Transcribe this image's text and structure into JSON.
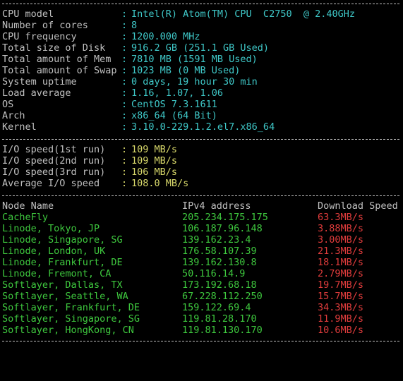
{
  "colors": {
    "background": "#000000",
    "label": "#c0c0c0",
    "sysinfo_value": "#3fc8c8",
    "io_value": "#d8d86a",
    "node_and_ip": "#3ec83e",
    "speed": "#e03c3c"
  },
  "separator": "-",
  "system_info": [
    {
      "label": "CPU model",
      "value": "Intel(R) Atom(TM) CPU  C2750  @ 2.40GHz"
    },
    {
      "label": "Number of cores",
      "value": "8"
    },
    {
      "label": "CPU frequency",
      "value": "1200.000 MHz"
    },
    {
      "label": "Total size of Disk",
      "value": "916.2 GB (251.1 GB Used)"
    },
    {
      "label": "Total amount of Mem",
      "value": "7810 MB (1591 MB Used)"
    },
    {
      "label": "Total amount of Swap",
      "value": "1023 MB (0 MB Used)"
    },
    {
      "label": "System uptime",
      "value": "0 days, 19 hour 30 min"
    },
    {
      "label": "Load average",
      "value": "1.16, 1.07, 1.06"
    },
    {
      "label": "OS",
      "value": "CentOS 7.3.1611"
    },
    {
      "label": "Arch",
      "value": "x86_64 (64 Bit)"
    },
    {
      "label": "Kernel",
      "value": "3.10.0-229.1.2.el7.x86_64"
    }
  ],
  "io_speed": [
    {
      "label": "I/O speed(1st run)",
      "value": "109 MB/s"
    },
    {
      "label": "I/O speed(2nd run)",
      "value": "109 MB/s"
    },
    {
      "label": "I/O speed(3rd run)",
      "value": "106 MB/s"
    },
    {
      "label": "Average I/O speed",
      "value": "108.0 MB/s"
    }
  ],
  "speed_table": {
    "headers": {
      "node": "Node Name",
      "ip": "IPv4 address",
      "speed": "Download Speed"
    },
    "rows": [
      {
        "node": "CacheFly",
        "ip": "205.234.175.175",
        "speed": "63.3MB/s"
      },
      {
        "node": "Linode, Tokyo, JP",
        "ip": "106.187.96.148",
        "speed": "3.88MB/s"
      },
      {
        "node": "Linode, Singapore, SG",
        "ip": "139.162.23.4",
        "speed": "3.00MB/s"
      },
      {
        "node": "Linode, London, UK",
        "ip": "176.58.107.39",
        "speed": "21.3MB/s"
      },
      {
        "node": "Linode, Frankfurt, DE",
        "ip": "139.162.130.8",
        "speed": "18.1MB/s"
      },
      {
        "node": "Linode, Fremont, CA",
        "ip": "50.116.14.9",
        "speed": "2.79MB/s"
      },
      {
        "node": "Softlayer, Dallas, TX",
        "ip": "173.192.68.18",
        "speed": "19.7MB/s"
      },
      {
        "node": "Softlayer, Seattle, WA",
        "ip": "67.228.112.250",
        "speed": "15.7MB/s"
      },
      {
        "node": "Softlayer, Frankfurt, DE",
        "ip": "159.122.69.4",
        "speed": "34.3MB/s"
      },
      {
        "node": "Softlayer, Singapore, SG",
        "ip": "119.81.28.170",
        "speed": "11.9MB/s"
      },
      {
        "node": "Softlayer, HongKong, CN",
        "ip": "119.81.130.170",
        "speed": "10.6MB/s"
      }
    ]
  }
}
